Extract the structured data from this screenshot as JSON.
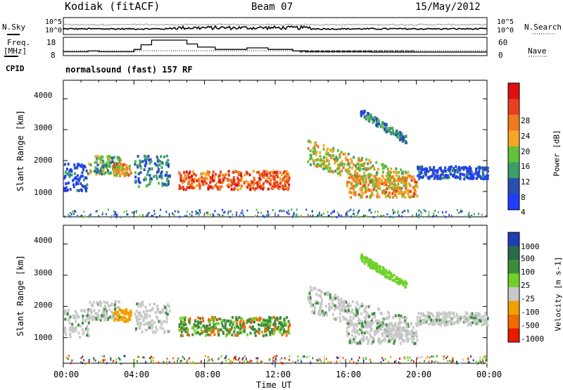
{
  "header": {
    "station": "Kodiak (fitACF)",
    "beam": "Beam 07",
    "date": "15/May/2012"
  },
  "labels": {
    "nsky": "N.Sky",
    "freq_line1": "Freq.",
    "freq_line2": "[MHz]",
    "cpid": "CPID",
    "nsearch": "N.Search",
    "nave": "Nave",
    "cpid_value": "normalsound (fast) 157 RF"
  },
  "colors": {
    "power": [
      "#1f3cff",
      "#2a50b0",
      "#3a9e6a",
      "#63c23a",
      "#f5a623",
      "#f07a20",
      "#e8401e",
      "#dd1111"
    ],
    "velocity": [
      "#1e3cb4",
      "#2a6a4a",
      "#3a8c3a",
      "#6fd12a",
      "#c8c8c8",
      "#f0a000",
      "#f06a00",
      "#e81a00"
    ],
    "ground": "#c8c8c8"
  },
  "chart_data": [
    {
      "type": "line",
      "name": "nsky-nsearch",
      "ylabel_left": "",
      "ticks_left": [
        "10^5",
        "10^0"
      ],
      "ticks_right": [
        "10^5",
        "10^0"
      ],
      "note": "noise levels"
    },
    {
      "type": "line",
      "name": "frequency-nave",
      "ticks_left": [
        "18",
        "8"
      ],
      "ticks_right": [
        "60",
        "0"
      ],
      "freq_steps": [
        {
          "t": 0,
          "v": 10.5
        },
        {
          "t": 1.4,
          "v": 11
        },
        {
          "t": 2.0,
          "v": 10.5
        },
        {
          "t": 4.0,
          "v": 12
        },
        {
          "t": 4.4,
          "v": 15
        },
        {
          "t": 5.0,
          "v": 18
        },
        {
          "t": 7.0,
          "v": 15.5
        },
        {
          "t": 7.6,
          "v": 13.5
        },
        {
          "t": 8.6,
          "v": 12
        },
        {
          "t": 10.4,
          "v": 13
        },
        {
          "t": 11.6,
          "v": 12
        },
        {
          "t": 13.0,
          "v": 11
        },
        {
          "t": 13.7,
          "v": 10.5
        },
        {
          "t": 17.5,
          "v": 10.3
        },
        {
          "t": 24.0,
          "v": 10.3
        }
      ],
      "nave_level": 3
    },
    {
      "type": "heatmap",
      "name": "power",
      "ylabel": "Slant Range [km]",
      "colorbar_label": "Power [dB]",
      "colorbar_ticks": [
        "28",
        "24",
        "20",
        "16",
        "12",
        "8",
        "4"
      ],
      "ylim": [
        180,
        4600
      ],
      "yticks": [
        "4000",
        "3000",
        "2000",
        "1000"
      ],
      "xlim": [
        0,
        24
      ],
      "xlabel": "",
      "features": [
        {
          "t0": 0.0,
          "t1": 1.4,
          "r": 1500,
          "w": 450,
          "level": 1
        },
        {
          "t0": 1.4,
          "t1": 3.2,
          "r": 1900,
          "w": 300,
          "level": 3
        },
        {
          "t0": 2.8,
          "t1": 3.8,
          "r": 1750,
          "w": 200,
          "level": 5
        },
        {
          "t0": 4.0,
          "t1": 6.0,
          "r": 1700,
          "w": 500,
          "level": 2
        },
        {
          "t0": 6.5,
          "t1": 12.8,
          "r": 1400,
          "w": 300,
          "level": 6
        },
        {
          "t0": 13.8,
          "t1": 19.5,
          "r": 1700,
          "w": 400,
          "level": 4
        },
        {
          "t0": 16.0,
          "t1": 20.0,
          "r": 1200,
          "w": 350,
          "level": 5
        },
        {
          "t0": 20.0,
          "t1": 24.0,
          "r": 1650,
          "w": 200,
          "level": 1
        },
        {
          "t0": 16.8,
          "t1": 19.4,
          "r": 3000,
          "w": 250,
          "level": 2
        }
      ]
    },
    {
      "type": "heatmap",
      "name": "velocity",
      "ylabel": "Slant Range [km]",
      "colorbar_label": "Velocity [m s-1]",
      "colorbar_ticks": [
        "1000",
        "500",
        "100",
        "25",
        "-25",
        "-100",
        "-500",
        "-1000"
      ],
      "ylim": [
        180,
        4600
      ],
      "yticks": [
        "4000",
        "3000",
        "2000",
        "1000"
      ],
      "xlim": [
        0,
        24
      ],
      "xlabel": "Time UT",
      "xticks": [
        "00:00",
        "04:00",
        "08:00",
        "12:00",
        "16:00",
        "20:00",
        "00:00"
      ]
    }
  ]
}
